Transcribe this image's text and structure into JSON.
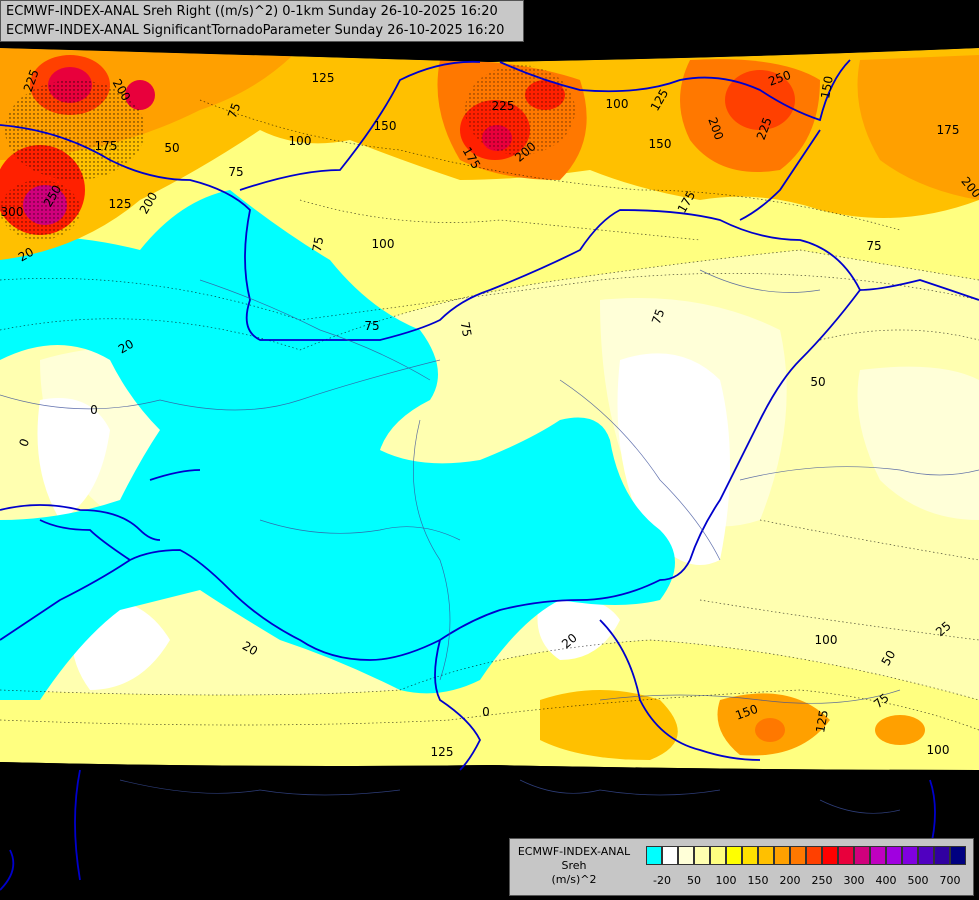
{
  "header": {
    "line1": "ECMWF-INDEX-ANAL Sreh Right ((m/s)^2) 0-1km Sunday 26-10-2025 16:20",
    "line2": "ECMWF-INDEX-ANAL SignificantTornadoParameter Sunday 26-10-2025 16:20"
  },
  "legend": {
    "title_line1": "ECMWF-INDEX-ANAL",
    "title_line2": "Sreh",
    "title_line3": "(m/s)^2",
    "colors": [
      "#00ffff",
      "#ffffff",
      "#ffffd8",
      "#ffffb0",
      "#ffff80",
      "#ffff00",
      "#ffe000",
      "#ffc000",
      "#ffa000",
      "#ff7800",
      "#ff4000",
      "#ff0000",
      "#e8003c",
      "#d0007c",
      "#c000c0",
      "#a000e0",
      "#8000e0",
      "#5000c0",
      "#3000a0",
      "#000080"
    ],
    "ticks": [
      "-20",
      "50",
      "100",
      "150",
      "200",
      "250",
      "300",
      "400",
      "500",
      "700"
    ]
  },
  "contour_labels": [
    {
      "id": "l225a",
      "text": "225"
    },
    {
      "id": "l200a",
      "text": "200"
    },
    {
      "id": "l175a",
      "text": "175"
    },
    {
      "id": "l75a",
      "text": "75"
    },
    {
      "id": "l125a",
      "text": "125"
    },
    {
      "id": "l150a",
      "text": "150"
    },
    {
      "id": "l225b",
      "text": "225"
    },
    {
      "id": "l100a",
      "text": "100"
    },
    {
      "id": "l125b",
      "text": "125"
    },
    {
      "id": "l250a",
      "text": "250"
    },
    {
      "id": "l150b",
      "text": "150"
    },
    {
      "id": "l200b",
      "text": "200"
    },
    {
      "id": "l225c",
      "text": "225"
    },
    {
      "id": "l175b",
      "text": "175"
    },
    {
      "id": "l200c",
      "text": "200"
    },
    {
      "id": "l50a",
      "text": "50"
    },
    {
      "id": "l100b",
      "text": "100"
    },
    {
      "id": "l75b",
      "text": "75"
    },
    {
      "id": "l250b",
      "text": "250"
    },
    {
      "id": "l300a",
      "text": "300"
    },
    {
      "id": "l125c",
      "text": "125"
    },
    {
      "id": "l200d",
      "text": "200"
    },
    {
      "id": "l175c",
      "text": "175"
    },
    {
      "id": "l150c",
      "text": "150"
    },
    {
      "id": "l175d",
      "text": "175"
    },
    {
      "id": "l200e",
      "text": "200"
    },
    {
      "id": "l20a",
      "text": "20"
    },
    {
      "id": "l75c",
      "text": "75"
    },
    {
      "id": "l100c",
      "text": "100"
    },
    {
      "id": "l75d",
      "text": "75"
    },
    {
      "id": "l75e",
      "text": "75"
    },
    {
      "id": "l75f",
      "text": "75"
    },
    {
      "id": "l75g",
      "text": "75"
    },
    {
      "id": "l50b",
      "text": "50"
    },
    {
      "id": "l20b",
      "text": "20"
    },
    {
      "id": "l0a",
      "text": "0"
    },
    {
      "id": "l0b",
      "text": "0"
    },
    {
      "id": "l20c",
      "text": "20"
    },
    {
      "id": "l20d",
      "text": "20"
    },
    {
      "id": "l0c",
      "text": "0"
    },
    {
      "id": "l125d",
      "text": "125"
    },
    {
      "id": "l100d",
      "text": "100"
    },
    {
      "id": "l50c",
      "text": "50"
    },
    {
      "id": "l150d",
      "text": "150"
    },
    {
      "id": "l125e",
      "text": "125"
    },
    {
      "id": "l75h",
      "text": "75"
    },
    {
      "id": "l100e",
      "text": "100"
    },
    {
      "id": "l25a",
      "text": "25"
    }
  ]
}
